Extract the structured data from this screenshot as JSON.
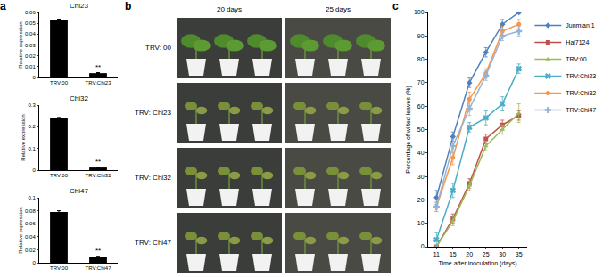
{
  "panel_labels": [
    "a",
    "b",
    "c"
  ],
  "panel_b": {
    "columns": [
      "20 days",
      "25 days"
    ],
    "rows": [
      "TRV: 00",
      "TRV: Chi23",
      "TRV: Chi32",
      "TRV: Chi47"
    ]
  },
  "chart_data": [
    {
      "type": "bar",
      "title": "Chi23",
      "y_label": "Relative expression",
      "categories": [
        "TRV:00",
        "TRV:Chi23"
      ],
      "values": [
        0.053,
        0.004
      ],
      "errors": [
        0.0008,
        0.0005
      ],
      "color": "#000000",
      "ylim": [
        0,
        0.06
      ],
      "yticks": [
        0,
        0.01,
        0.02,
        0.03,
        0.04,
        0.05,
        0.06
      ],
      "grid": false,
      "annotations": [
        {
          "text": "**",
          "category": "TRV:Chi23"
        }
      ]
    },
    {
      "type": "bar",
      "title": "Chi32",
      "y_label": "Relative expression",
      "categories": [
        "TRV:00",
        "TRV:Chi32"
      ],
      "values": [
        0.24,
        0.012
      ],
      "errors": [
        0.003,
        0.002
      ],
      "color": "#000000",
      "ylim": [
        0,
        0.3
      ],
      "yticks": [
        0,
        0.1,
        0.2,
        0.3
      ],
      "grid": false,
      "annotations": [
        {
          "text": "**",
          "category": "TRV:Chi32"
        }
      ]
    },
    {
      "type": "bar",
      "title": "Chi47",
      "y_label": "Relative expression",
      "categories": [
        "TRV:00",
        "TRV:Chi47"
      ],
      "values": [
        0.078,
        0.009
      ],
      "errors": [
        0.002,
        0.001
      ],
      "color": "#000000",
      "ylim": [
        0,
        0.1
      ],
      "yticks": [
        0,
        0.02,
        0.04,
        0.06,
        0.08,
        0.1
      ],
      "grid": false,
      "annotations": [
        {
          "text": "**",
          "category": "TRV:Chi47"
        }
      ]
    },
    {
      "type": "line",
      "x_label": "Time after inoculation (days)",
      "y_label": "Percentage of wilted leaves (%)",
      "categories": [
        "11",
        "15",
        "20",
        "25",
        "30",
        "35"
      ],
      "ylim": [
        0,
        100
      ],
      "yticks": [
        0,
        10,
        20,
        30,
        40,
        50,
        60,
        70,
        80,
        90,
        100
      ],
      "grid": false,
      "legend": "right",
      "series": [
        {
          "name": "Junmian 1",
          "color": "#4f81bd",
          "marker": "diamond",
          "values": [
            21,
            47,
            70,
            83,
            95,
            100
          ],
          "errors": [
            3,
            2,
            2,
            2,
            2,
            0.5
          ]
        },
        {
          "name": "Hai7124",
          "color": "#c0504d",
          "marker": "square",
          "values": [
            0,
            12,
            27,
            46,
            52,
            56
          ],
          "errors": [
            0.5,
            2,
            2,
            2,
            2,
            2
          ]
        },
        {
          "name": "TRV:00",
          "color": "#9bbb59",
          "marker": "triangle-up",
          "values": [
            0,
            11,
            26,
            43,
            50,
            57
          ],
          "errors": [
            0.5,
            2,
            2,
            2,
            2,
            4
          ]
        },
        {
          "name": "TRV:Chi23",
          "color": "#4bacc6",
          "marker": "x",
          "values": [
            3,
            24,
            51,
            55,
            61,
            76
          ],
          "errors": [
            3,
            3,
            2,
            3,
            3,
            2
          ]
        },
        {
          "name": "TRV:Chi32",
          "color": "#f79646",
          "marker": "circle",
          "values": [
            17,
            38,
            63,
            74,
            92,
            95
          ],
          "errors": [
            2,
            3,
            3,
            2,
            2,
            2
          ]
        },
        {
          "name": "TRV:Chi47",
          "color": "#95b3d7",
          "marker": "cross",
          "values": [
            17,
            43,
            59,
            73,
            90,
            92
          ],
          "errors": [
            2,
            3,
            3,
            2,
            2,
            2
          ]
        }
      ]
    }
  ]
}
